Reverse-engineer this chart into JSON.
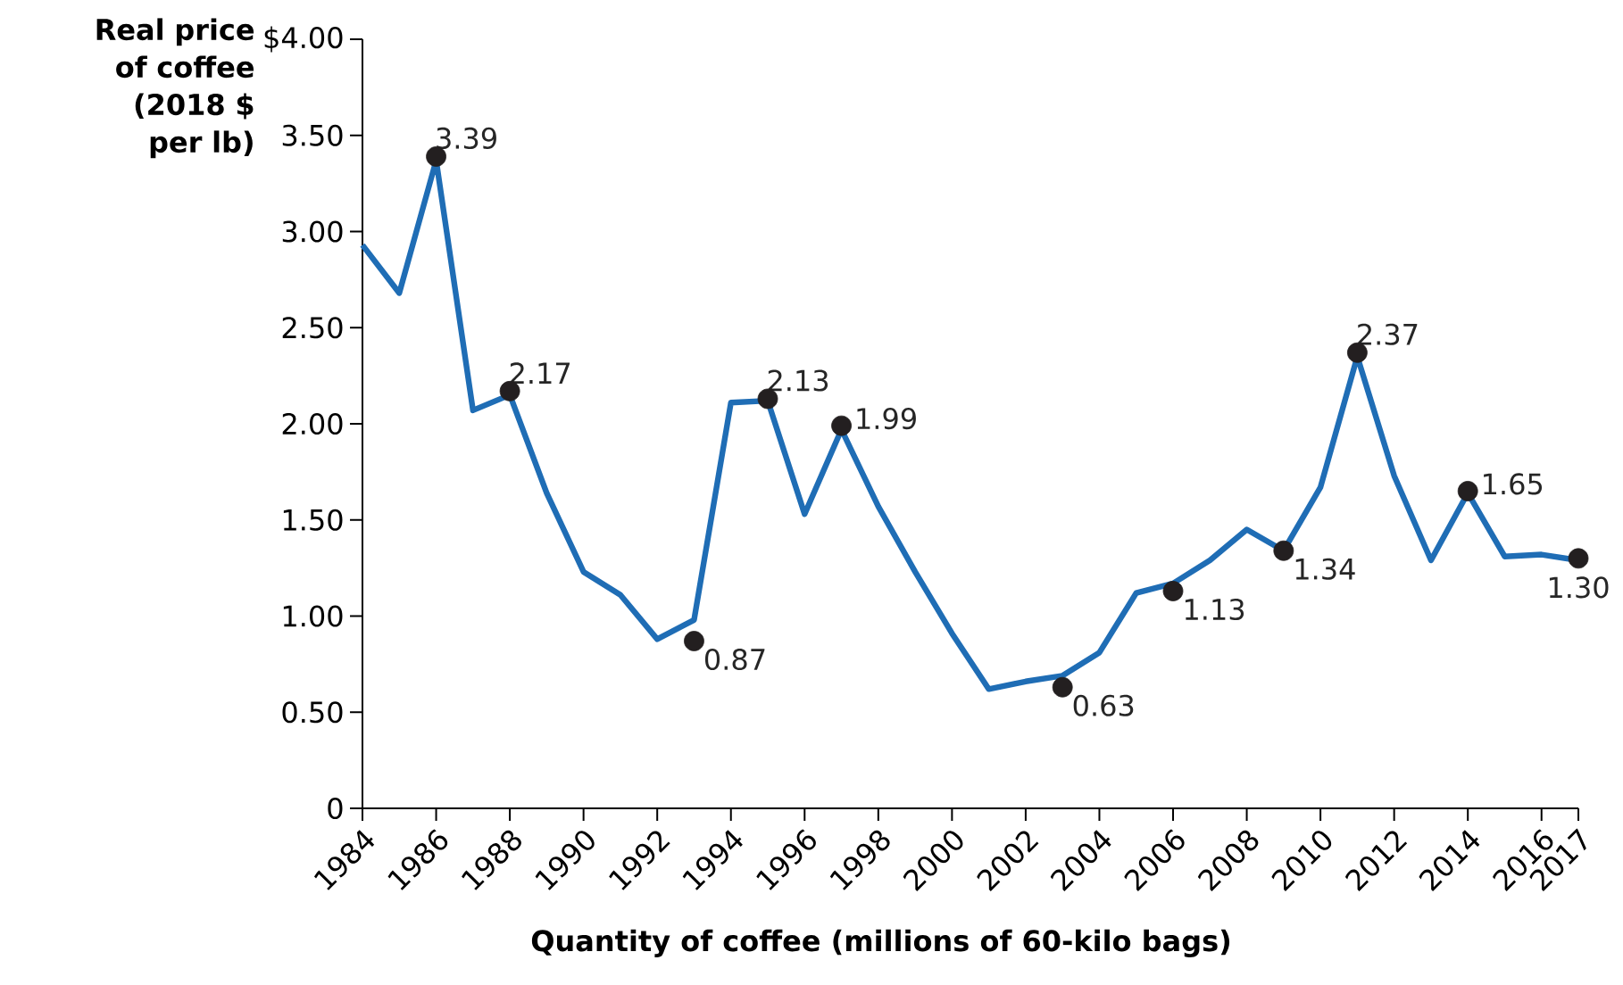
{
  "chart_data": {
    "type": "line",
    "xlabel": "Quantity of coffee (millions of 60-kilo bags)",
    "ylabel": "Real price of coffee (2018 $ per lb)",
    "xlim": [
      1984,
      2017
    ],
    "xticks": [
      1984,
      1986,
      1988,
      1990,
      1992,
      1994,
      1996,
      1998,
      2000,
      2002,
      2004,
      2006,
      2008,
      2010,
      2012,
      2014,
      2016,
      2017
    ],
    "ylim": [
      0,
      4
    ],
    "yticks": [
      0,
      {
        "value": 0.5,
        "label": "0.50"
      },
      {
        "value": 1,
        "label": "1.00"
      },
      {
        "value": 1.5,
        "label": "1.50"
      },
      {
        "value": 2,
        "label": "2.00"
      },
      {
        "value": 2.5,
        "label": "2.50"
      },
      {
        "value": 3,
        "label": "3.00"
      },
      {
        "value": 3.5,
        "label": "3.50"
      },
      {
        "value": 4,
        "label": "$4.00"
      }
    ],
    "series": [
      {
        "color": "#1f6db5",
        "marker": "none",
        "line_style": "solid",
        "x": [
          1984,
          1985,
          1986,
          1987,
          1988,
          1989,
          1990,
          1991,
          1992,
          1993,
          1994,
          1995,
          1996,
          1997,
          1998,
          1999,
          2000,
          2001,
          2002,
          2003,
          2004,
          2005,
          2006,
          2007,
          2008,
          2009,
          2010,
          2011,
          2012,
          2013,
          2014,
          2015,
          2016,
          2017
        ],
        "values": [
          2.93,
          2.68,
          3.37,
          2.07,
          2.15,
          1.64,
          1.23,
          1.11,
          0.88,
          0.98,
          2.11,
          2.12,
          1.53,
          1.97,
          1.57,
          1.23,
          0.91,
          0.62,
          0.66,
          0.69,
          0.81,
          1.12,
          1.17,
          1.29,
          1.45,
          1.34,
          1.67,
          2.35,
          1.73,
          1.29,
          1.64,
          1.31,
          1.32,
          1.29
        ]
      },
      {
        "type": "scatter",
        "color": "#231f20",
        "marker": "circle",
        "x": [
          1986,
          1988,
          1993,
          1995,
          1997,
          2003,
          2006,
          2009,
          2011,
          2014,
          2017
        ],
        "values": [
          3.39,
          2.17,
          0.87,
          2.13,
          1.99,
          0.63,
          1.13,
          1.34,
          2.37,
          1.65,
          1.3
        ],
        "value_labels": [
          "3.39",
          "2.17",
          "0.87",
          "2.13",
          "1.99",
          "0.63",
          "1.13",
          "1.34",
          "2.37",
          "1.65",
          "1.30"
        ]
      }
    ]
  }
}
